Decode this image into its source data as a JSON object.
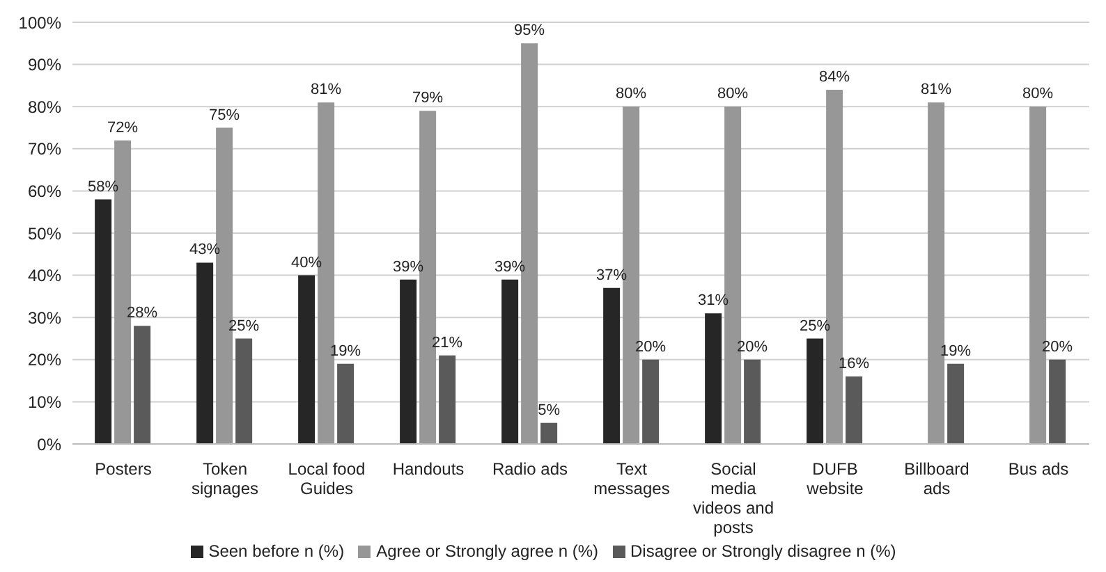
{
  "chart_data": {
    "type": "bar",
    "categories": [
      "Posters",
      "Token signages",
      "Local food Guides",
      "Handouts",
      "Radio ads",
      "Text messages",
      "Social media videos and posts",
      "DUFB website",
      "Billboard ads",
      "Bus ads"
    ],
    "series": [
      {
        "name": "Seen before n (%)",
        "color": "#262626",
        "values": [
          58,
          43,
          40,
          39,
          39,
          37,
          31,
          25,
          null,
          null
        ],
        "value_labels": [
          "58%",
          "43%",
          "40%",
          "39%",
          "39%",
          "37%",
          "31%",
          "25%",
          null,
          null
        ]
      },
      {
        "name": "Agree or Strongly agree n (%)",
        "color": "#979797",
        "values": [
          72,
          75,
          81,
          79,
          95,
          80,
          80,
          84,
          81,
          80
        ],
        "value_labels": [
          "72%",
          "75%",
          "81%",
          "79%",
          "95%",
          "80%",
          "80%",
          "84%",
          "81%",
          "80%"
        ]
      },
      {
        "name": "Disagree or Strongly disagree n (%)",
        "color": "#5a5a5a",
        "values": [
          28,
          25,
          19,
          21,
          5,
          20,
          20,
          16,
          19,
          20
        ],
        "value_labels": [
          "28%",
          "25%",
          "19%",
          "21%",
          "5%",
          "20%",
          "20%",
          "16%",
          "19%",
          "20%"
        ]
      }
    ],
    "ylim": [
      0,
      100
    ],
    "yticks": [
      {
        "value": 0,
        "label": "0%"
      },
      {
        "value": 10,
        "label": "10%"
      },
      {
        "value": 20,
        "label": "20%"
      },
      {
        "value": 30,
        "label": "30%"
      },
      {
        "value": 40,
        "label": "40%"
      },
      {
        "value": 50,
        "label": "50%"
      },
      {
        "value": 60,
        "label": "60%"
      },
      {
        "value": 70,
        "label": "70%"
      },
      {
        "value": 80,
        "label": "80%"
      },
      {
        "value": 90,
        "label": "90%"
      },
      {
        "value": 100,
        "label": "100%"
      }
    ],
    "grid": "y",
    "legend": "bottom"
  }
}
